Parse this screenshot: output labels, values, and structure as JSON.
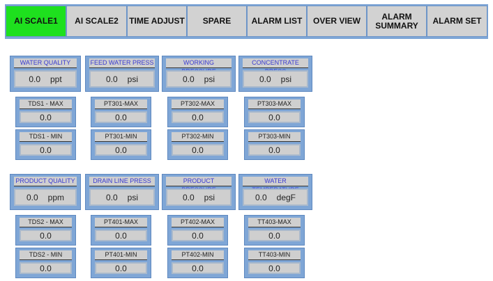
{
  "nav": {
    "items": [
      {
        "label": "AI SCALE1",
        "active": true
      },
      {
        "label": "AI SCALE2"
      },
      {
        "label": "TIME ADJUST"
      },
      {
        "label": "SPARE"
      },
      {
        "label": "ALARM LIST"
      },
      {
        "label": "OVER VIEW"
      },
      {
        "label": "ALARM SUMMARY"
      },
      {
        "label": "ALARM SET"
      }
    ],
    "active_color": "#1ee01e"
  },
  "sections": [
    {
      "groups": [
        {
          "title": "WATER QUALITY",
          "value": "0.0",
          "unit": "ppt",
          "max_label": "TDS1 - MAX",
          "max_value": "0.0",
          "min_label": "TDS1 - MIN",
          "min_value": "0.0"
        },
        {
          "title": "FEED WATER PRESS",
          "value": "0.0",
          "unit": "psi",
          "max_label": "PT301-MAX",
          "max_value": "0.0",
          "min_label": "PT301-MIN",
          "min_value": "0.0"
        },
        {
          "title": "WORKING PRESSURE",
          "value": "0.0",
          "unit": "psi",
          "max_label": "PT302-MAX",
          "max_value": "0.0",
          "min_label": "PT302-MIN",
          "min_value": "0.0"
        },
        {
          "title": "CONCENTRATE PRESS",
          "value": "0.0",
          "unit": "psi",
          "max_label": "PT303-MAX",
          "max_value": "0.0",
          "min_label": "PT303-MIN",
          "min_value": "0.0"
        }
      ]
    },
    {
      "groups": [
        {
          "title": "PRODUCT QUALITY",
          "value": "0.0",
          "unit": "ppm",
          "max_label": "TDS2 - MAX",
          "max_value": "0.0",
          "min_label": "TDS2 - MIN",
          "min_value": "0.0"
        },
        {
          "title": "DRAIN LINE PRESS",
          "value": "0.0",
          "unit": "psi",
          "max_label": "PT401-MAX",
          "max_value": "0.0",
          "min_label": "PT401-MIN",
          "min_value": "0.0"
        },
        {
          "title": "PRODUCT PRESSURE",
          "value": "0.0",
          "unit": "psi",
          "max_label": "PT402-MAX",
          "max_value": "0.0",
          "min_label": "PT402-MIN",
          "min_value": "0.0"
        },
        {
          "title": "WATER TEMPERATURE",
          "value": "0.0",
          "unit": "degF",
          "max_label": "TT403-MAX",
          "max_value": "0.0",
          "min_label": "TT403-MIN",
          "min_value": "0.0"
        }
      ]
    }
  ]
}
